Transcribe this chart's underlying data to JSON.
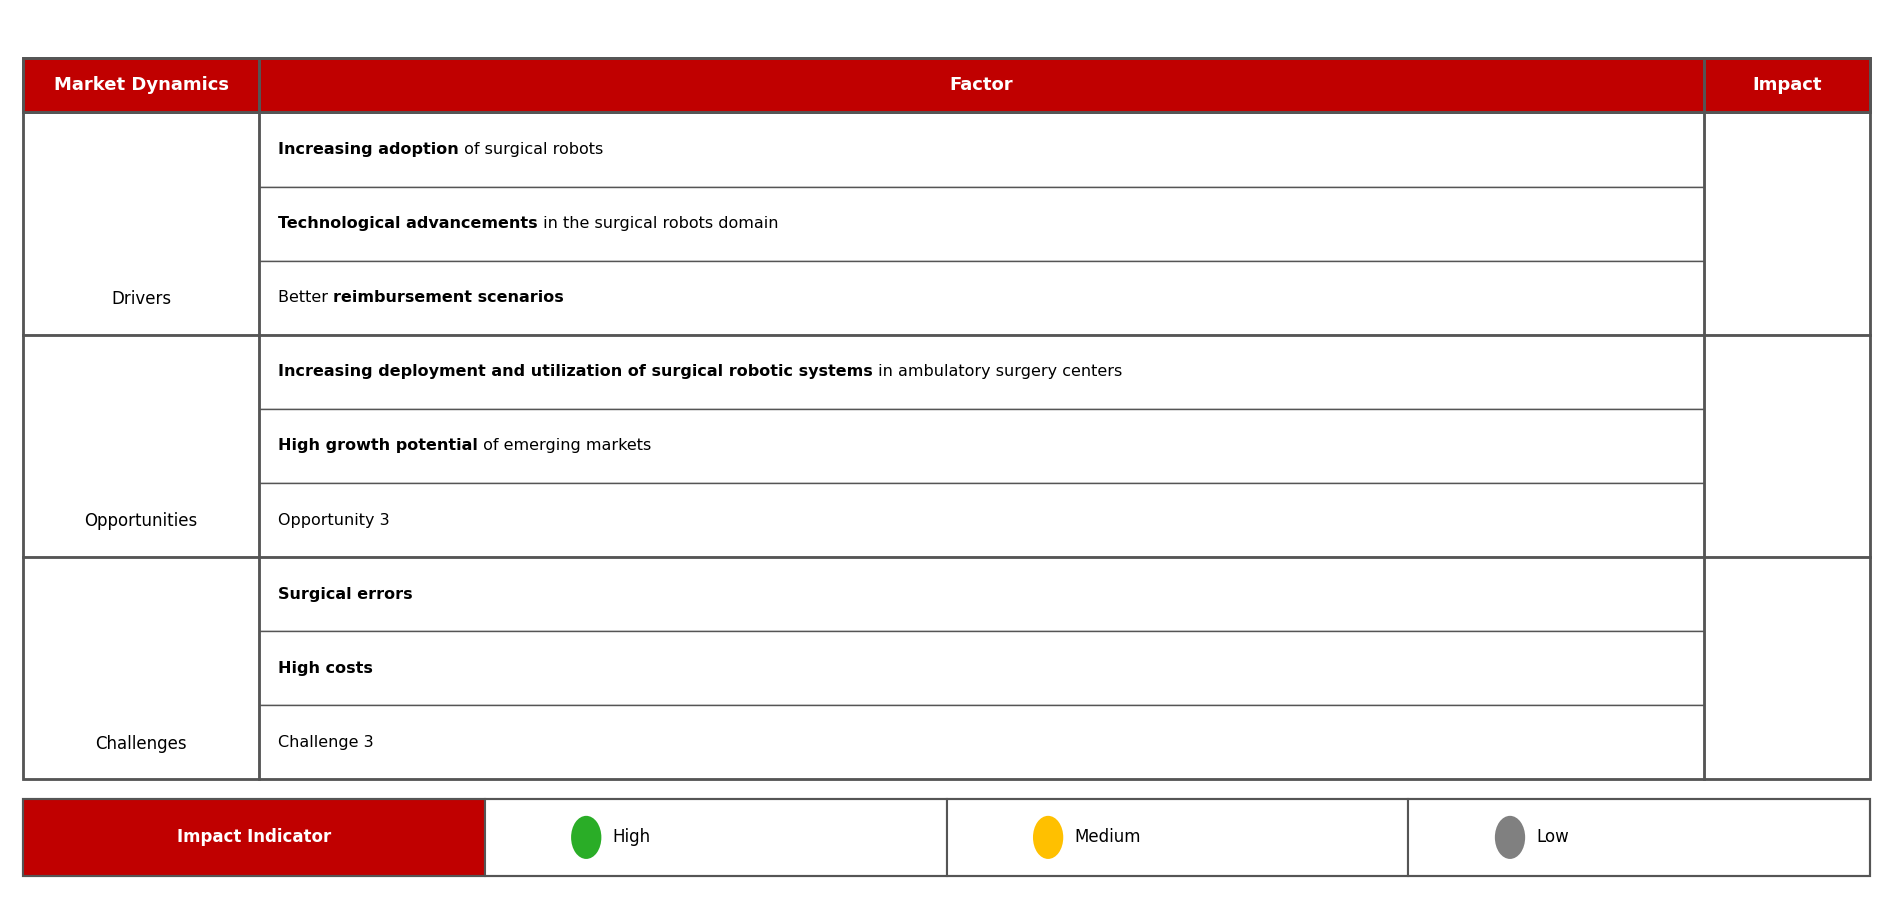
{
  "header_bg": "#C00000",
  "header_text_color": "#FFFFFF",
  "cell_bg": "#FFFFFF",
  "col1_header": "Market Dynamics",
  "col2_header": "Factor",
  "col3_header": "Impact",
  "sections": [
    {
      "label": "Drivers",
      "rows": [
        [
          [
            "Increasing adoption",
            true
          ],
          [
            " of surgical robots",
            false
          ]
        ],
        [
          [
            "Technological advancements",
            true
          ],
          [
            " in the surgical robots domain",
            false
          ]
        ],
        [
          [
            "Better ",
            false
          ],
          [
            "reimbursement scenarios",
            true
          ]
        ]
      ]
    },
    {
      "label": "Opportunities",
      "rows": [
        [
          [
            "Increasing deployment and utilization of surgical robotic systems",
            true
          ],
          [
            " in ambulatory surgery centers",
            false
          ]
        ],
        [
          [
            "High growth potential",
            true
          ],
          [
            " of emerging markets",
            false
          ]
        ],
        [
          [
            "Opportunity 3",
            false
          ]
        ]
      ]
    },
    {
      "label": "Challenges",
      "rows": [
        [
          [
            "Surgical errors",
            true
          ]
        ],
        [
          [
            "High costs",
            true
          ]
        ],
        [
          [
            "Challenge 3",
            false
          ]
        ]
      ]
    }
  ],
  "legend_label": "Impact Indicator",
  "legend_items": [
    {
      "label": "High",
      "color": "#2AAD27"
    },
    {
      "label": "Medium",
      "color": "#FFC000"
    },
    {
      "label": "Low",
      "color": "#808080"
    }
  ],
  "font_size_header": 13,
  "font_size_cell": 11.5,
  "font_size_label": 12,
  "font_size_legend": 12
}
